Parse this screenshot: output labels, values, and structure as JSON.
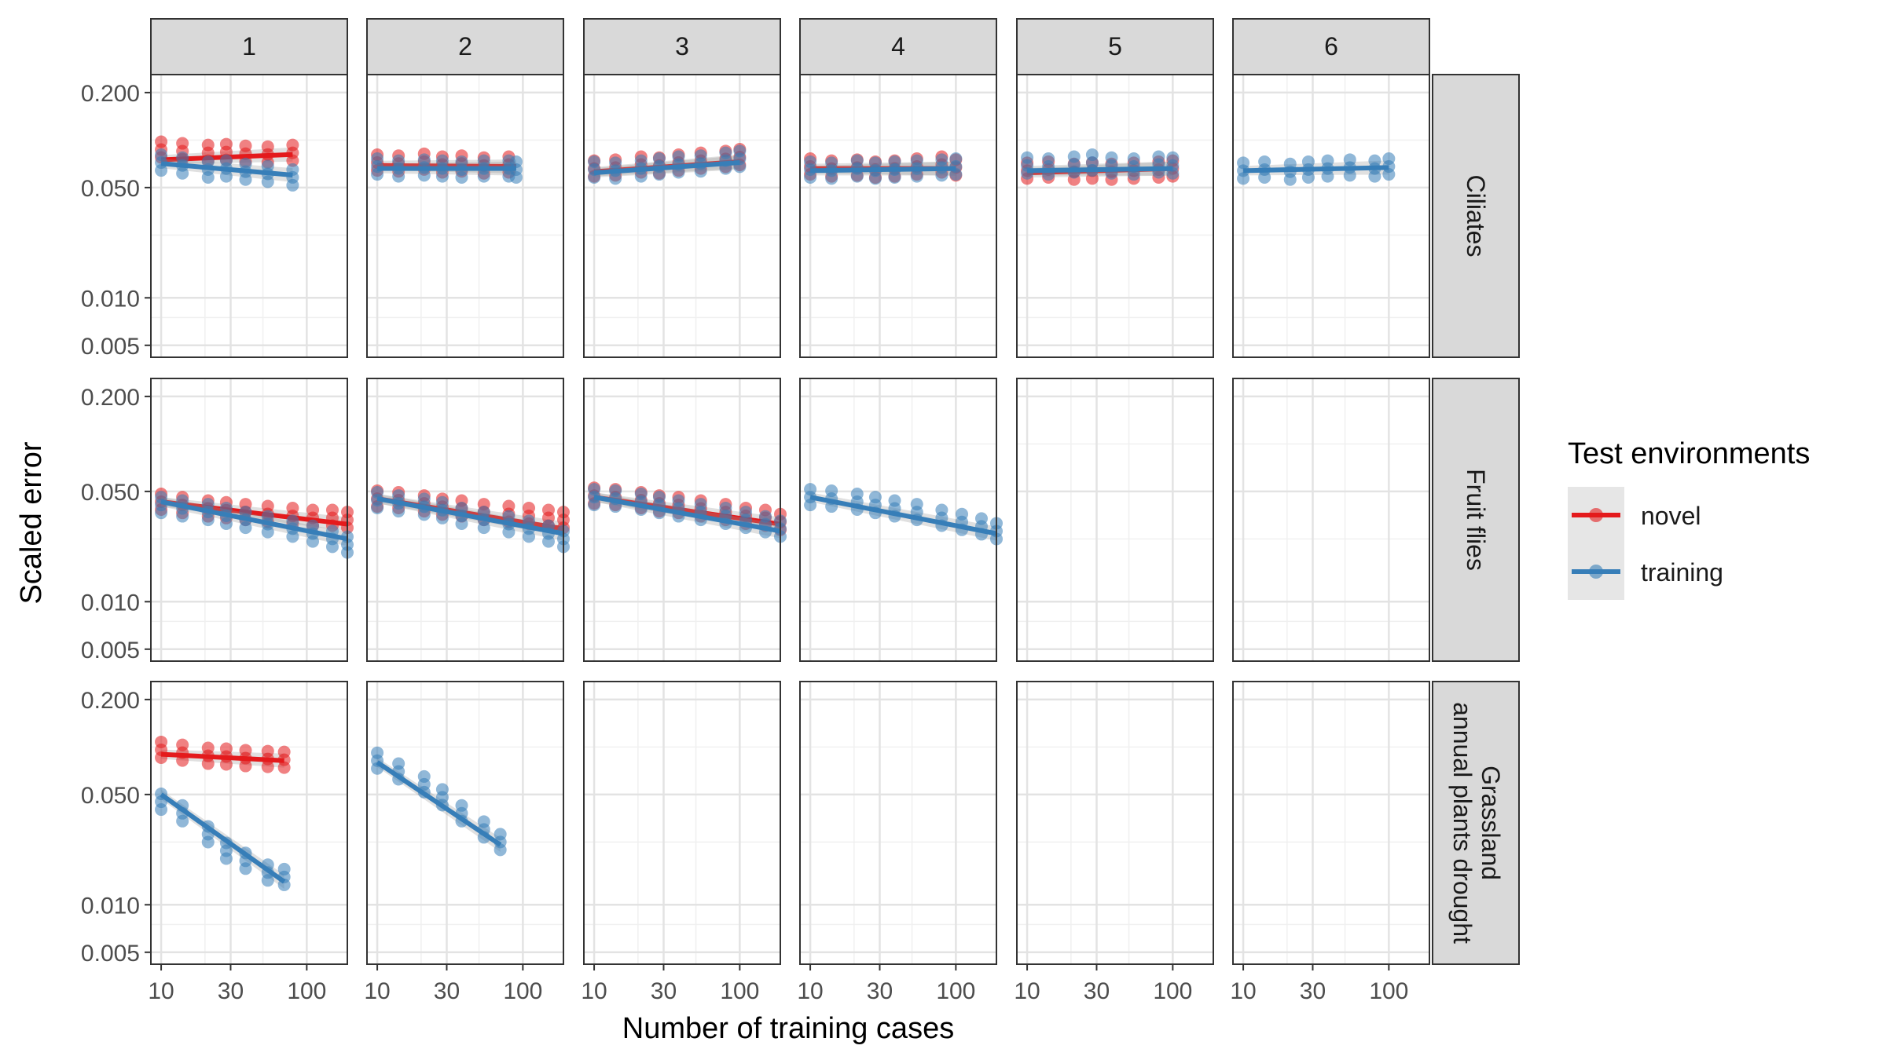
{
  "chart_data": {
    "type": "scatter",
    "xlabel": "Number of training cases",
    "ylabel": "Scaled error",
    "x_scale": "log",
    "y_scale": "log",
    "xlim": [
      8.5,
      190
    ],
    "ylim": [
      0.0042,
      0.26
    ],
    "x_ticks": [
      10,
      30,
      100
    ],
    "x_tick_labels": [
      "10",
      "30",
      "100"
    ],
    "y_ticks": [
      0.005,
      0.01,
      0.05,
      0.2
    ],
    "y_tick_labels": [
      "0.005",
      "0.010",
      "0.050",
      "0.200"
    ],
    "column_labels": [
      "1",
      "2",
      "3",
      "4",
      "5",
      "6"
    ],
    "row_labels": [
      "Ciliates",
      "Fruit flies",
      "Grassland annual plants drought"
    ],
    "legend": {
      "title": "Test environments",
      "position": "right",
      "items": [
        {
          "name": "novel",
          "color": "#e41a1c"
        },
        {
          "name": "training",
          "color": "#377eb8"
        }
      ]
    },
    "grid": true,
    "panels": [
      {
        "row": 0,
        "col": 0,
        "series": [
          {
            "name": "novel",
            "x": [
              10,
              14,
              21,
              28,
              38,
              54,
              80
            ],
            "y": [
              0.087,
              0.085,
              0.083,
              0.084,
              0.082,
              0.081,
              0.083
            ],
            "trend": [
              [
                10,
                0.075
              ],
              [
                80,
                0.081
              ]
            ]
          },
          {
            "name": "training",
            "x": [
              10,
              14,
              21,
              28,
              38,
              54,
              80
            ],
            "y": [
              0.072,
              0.069,
              0.065,
              0.066,
              0.063,
              0.061,
              0.058
            ],
            "trend": [
              [
                10,
                0.071
              ],
              [
                80,
                0.06
              ]
            ]
          }
        ]
      },
      {
        "row": 0,
        "col": 1,
        "series": [
          {
            "name": "novel",
            "x": [
              10,
              14,
              21,
              28,
              38,
              54,
              80
            ],
            "y": [
              0.072,
              0.071,
              0.073,
              0.07,
              0.071,
              0.069,
              0.07
            ],
            "trend": [
              [
                10,
                0.069
              ],
              [
                90,
                0.068
              ]
            ]
          },
          {
            "name": "training",
            "x": [
              10,
              14,
              21,
              28,
              38,
              54,
              80,
              90
            ],
            "y": [
              0.068,
              0.066,
              0.067,
              0.066,
              0.065,
              0.066,
              0.066,
              0.065
            ],
            "trend": [
              [
                10,
                0.066
              ],
              [
                90,
                0.066
              ]
            ]
          }
        ]
      },
      {
        "row": 0,
        "col": 2,
        "series": [
          {
            "name": "novel",
            "x": [
              10,
              14,
              21,
              28,
              38,
              54,
              80,
              100
            ],
            "y": [
              0.066,
              0.067,
              0.07,
              0.069,
              0.072,
              0.074,
              0.076,
              0.078
            ],
            "trend": [
              [
                10,
                0.063
              ],
              [
                100,
                0.073
              ]
            ]
          },
          {
            "name": "training",
            "x": [
              10,
              14,
              21,
              28,
              38,
              54,
              80,
              100
            ],
            "y": [
              0.065,
              0.064,
              0.066,
              0.068,
              0.07,
              0.071,
              0.074,
              0.076
            ],
            "trend": [
              [
                10,
                0.062
              ],
              [
                100,
                0.072
              ]
            ]
          }
        ]
      },
      {
        "row": 0,
        "col": 3,
        "series": [
          {
            "name": "novel",
            "x": [
              10,
              14,
              21,
              28,
              38,
              54,
              80,
              100
            ],
            "y": [
              0.068,
              0.066,
              0.067,
              0.065,
              0.066,
              0.068,
              0.07,
              0.067
            ],
            "trend": [
              [
                10,
                0.066
              ],
              [
                100,
                0.066
              ]
            ]
          },
          {
            "name": "training",
            "x": [
              10,
              14,
              21,
              28,
              38,
              54,
              80,
              100
            ],
            "y": [
              0.065,
              0.064,
              0.066,
              0.064,
              0.065,
              0.066,
              0.067,
              0.068
            ],
            "trend": [
              [
                10,
                0.064
              ],
              [
                100,
                0.066
              ]
            ]
          }
        ]
      },
      {
        "row": 0,
        "col": 4,
        "series": [
          {
            "name": "novel",
            "x": [
              10,
              14,
              21,
              28,
              38,
              54,
              80,
              100
            ],
            "y": [
              0.064,
              0.065,
              0.063,
              0.064,
              0.063,
              0.064,
              0.065,
              0.066
            ],
            "trend": [
              [
                10,
                0.062
              ],
              [
                100,
                0.066
              ]
            ]
          },
          {
            "name": "training",
            "x": [
              10,
              14,
              21,
              28,
              38,
              54,
              80,
              100
            ],
            "y": [
              0.069,
              0.068,
              0.07,
              0.072,
              0.069,
              0.068,
              0.07,
              0.069
            ],
            "trend": [
              [
                10,
                0.064
              ],
              [
                100,
                0.066
              ]
            ]
          }
        ]
      },
      {
        "row": 0,
        "col": 5,
        "series": [
          {
            "name": "training",
            "x": [
              10,
              14,
              21,
              28,
              38,
              54,
              80,
              100
            ],
            "y": [
              0.064,
              0.065,
              0.063,
              0.065,
              0.066,
              0.067,
              0.066,
              0.068
            ],
            "trend": [
              [
                10,
                0.064
              ],
              [
                100,
                0.067
              ]
            ]
          }
        ]
      },
      {
        "row": 1,
        "col": 0,
        "series": [
          {
            "name": "novel",
            "x": [
              10,
              14,
              21,
              28,
              38,
              54,
              80,
              110,
              150,
              190
            ],
            "y": [
              0.043,
              0.041,
              0.039,
              0.038,
              0.037,
              0.036,
              0.035,
              0.034,
              0.034,
              0.033
            ],
            "trend": [
              [
                10,
                0.043
              ],
              [
                190,
                0.031
              ]
            ]
          },
          {
            "name": "training",
            "x": [
              10,
              14,
              21,
              28,
              38,
              54,
              80,
              110,
              150,
              190
            ],
            "y": [
              0.041,
              0.039,
              0.037,
              0.035,
              0.033,
              0.031,
              0.029,
              0.027,
              0.025,
              0.023
            ],
            "trend": [
              [
                10,
                0.043
              ],
              [
                190,
                0.025
              ]
            ]
          }
        ]
      },
      {
        "row": 1,
        "col": 1,
        "series": [
          {
            "name": "novel",
            "x": [
              10,
              14,
              21,
              28,
              38,
              54,
              80,
              110,
              150,
              190
            ],
            "y": [
              0.045,
              0.044,
              0.042,
              0.04,
              0.039,
              0.037,
              0.036,
              0.035,
              0.034,
              0.033
            ],
            "trend": [
              [
                10,
                0.045
              ],
              [
                190,
                0.029
              ]
            ]
          },
          {
            "name": "training",
            "x": [
              10,
              14,
              21,
              28,
              38,
              54,
              80,
              110,
              150,
              190
            ],
            "y": [
              0.044,
              0.042,
              0.04,
              0.038,
              0.035,
              0.033,
              0.031,
              0.029,
              0.027,
              0.025
            ],
            "trend": [
              [
                10,
                0.045
              ],
              [
                190,
                0.027
              ]
            ]
          }
        ]
      },
      {
        "row": 1,
        "col": 2,
        "series": [
          {
            "name": "novel",
            "x": [
              10,
              14,
              21,
              28,
              38,
              54,
              80,
              110,
              150,
              190
            ],
            "y": [
              0.047,
              0.046,
              0.044,
              0.042,
              0.041,
              0.039,
              0.037,
              0.035,
              0.034,
              0.032
            ],
            "trend": [
              [
                10,
                0.046
              ],
              [
                190,
                0.031
              ]
            ]
          },
          {
            "name": "training",
            "x": [
              10,
              14,
              21,
              28,
              38,
              54,
              80,
              110,
              150,
              190
            ],
            "y": [
              0.046,
              0.045,
              0.043,
              0.041,
              0.039,
              0.037,
              0.035,
              0.033,
              0.031,
              0.029
            ],
            "trend": [
              [
                10,
                0.046
              ],
              [
                190,
                0.028
              ]
            ]
          }
        ]
      },
      {
        "row": 1,
        "col": 3,
        "series": [
          {
            "name": "training",
            "x": [
              10,
              14,
              21,
              28,
              38,
              54,
              80,
              110,
              150,
              190
            ],
            "y": [
              0.046,
              0.045,
              0.043,
              0.041,
              0.039,
              0.037,
              0.034,
              0.032,
              0.03,
              0.028
            ],
            "trend": [
              [
                10,
                0.046
              ],
              [
                190,
                0.027
              ]
            ]
          }
        ]
      },
      {
        "row": 2,
        "col": 0,
        "series": [
          {
            "name": "novel",
            "x": [
              10,
              14,
              21,
              28,
              38,
              54,
              70
            ],
            "y": [
              0.096,
              0.092,
              0.088,
              0.087,
              0.085,
              0.084,
              0.083
            ],
            "trend": [
              [
                10,
                0.09
              ],
              [
                70,
                0.082
              ]
            ]
          },
          {
            "name": "training",
            "x": [
              10,
              14,
              21,
              28,
              38,
              54,
              70
            ],
            "y": [
              0.045,
              0.038,
              0.028,
              0.022,
              0.019,
              0.016,
              0.015
            ],
            "trend": [
              [
                10,
                0.05
              ],
              [
                70,
                0.014
              ]
            ]
          }
        ]
      },
      {
        "row": 2,
        "col": 1,
        "series": [
          {
            "name": "training",
            "x": [
              10,
              14,
              21,
              28,
              38,
              54,
              70
            ],
            "y": [
              0.082,
              0.07,
              0.058,
              0.048,
              0.038,
              0.03,
              0.025
            ],
            "trend": [
              [
                10,
                0.08
              ],
              [
                70,
                0.024
              ]
            ]
          }
        ]
      }
    ]
  }
}
